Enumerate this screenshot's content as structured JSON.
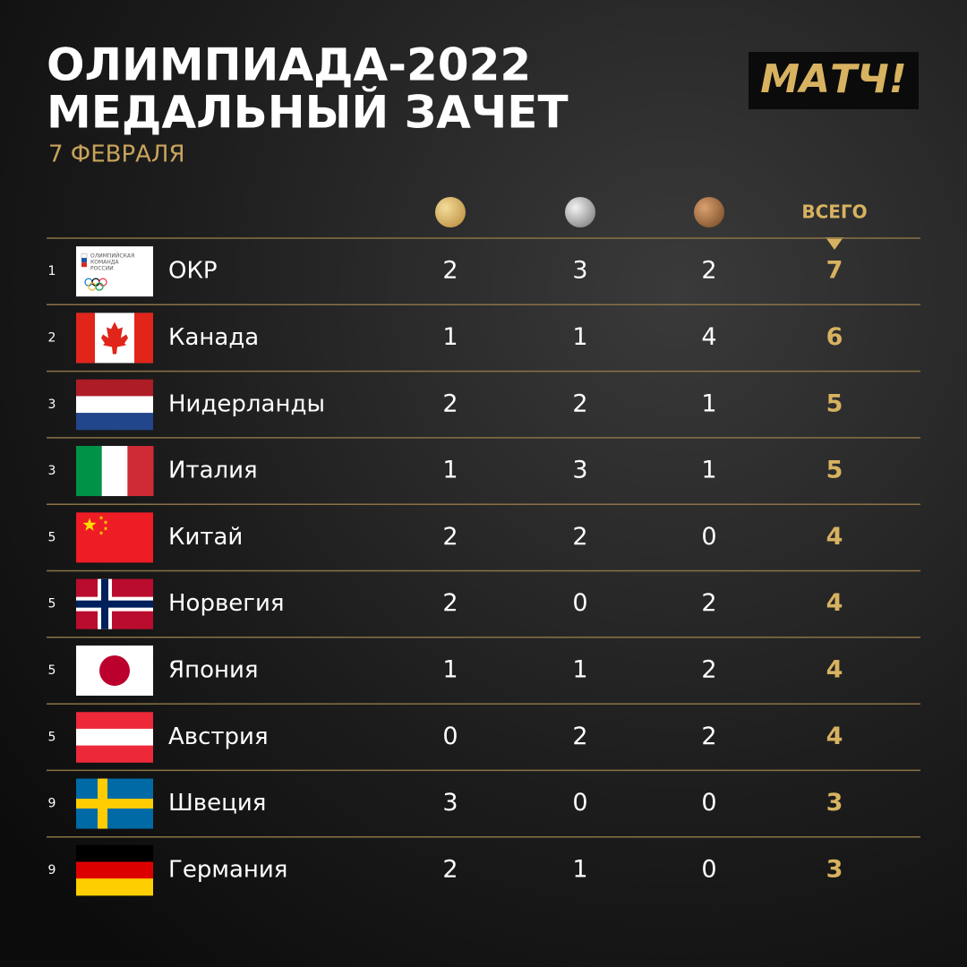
{
  "header": {
    "title_lines": [
      "ОЛИМПИАДА-2022",
      "МЕДАЛЬНЫЙ ЗАЧЕТ"
    ],
    "date": "7 ФЕВРАЛЯ",
    "logo": "МАТЧ!"
  },
  "roc_logo": [
    "ОЛИМПИЙСКАЯ",
    "КОМАНДА",
    "РОССИИ"
  ],
  "table": {
    "total_header": "ВСЕГО",
    "rows": [
      [
        1,
        "ОКР",
        2,
        3,
        2,
        7
      ],
      [
        2,
        "Канада",
        1,
        1,
        4,
        6
      ],
      [
        3,
        "Нидерланды",
        2,
        2,
        1,
        5
      ],
      [
        3,
        "Италия",
        1,
        3,
        1,
        5
      ],
      [
        5,
        "Китай",
        2,
        2,
        0,
        4
      ],
      [
        5,
        "Норвегия",
        2,
        0,
        2,
        4
      ],
      [
        5,
        "Япония",
        1,
        1,
        2,
        4
      ],
      [
        5,
        "Австрия",
        0,
        2,
        2,
        4
      ],
      [
        9,
        "Швеция",
        3,
        0,
        0,
        3
      ],
      [
        9,
        "Германия",
        2,
        1,
        0,
        3
      ]
    ]
  }
}
